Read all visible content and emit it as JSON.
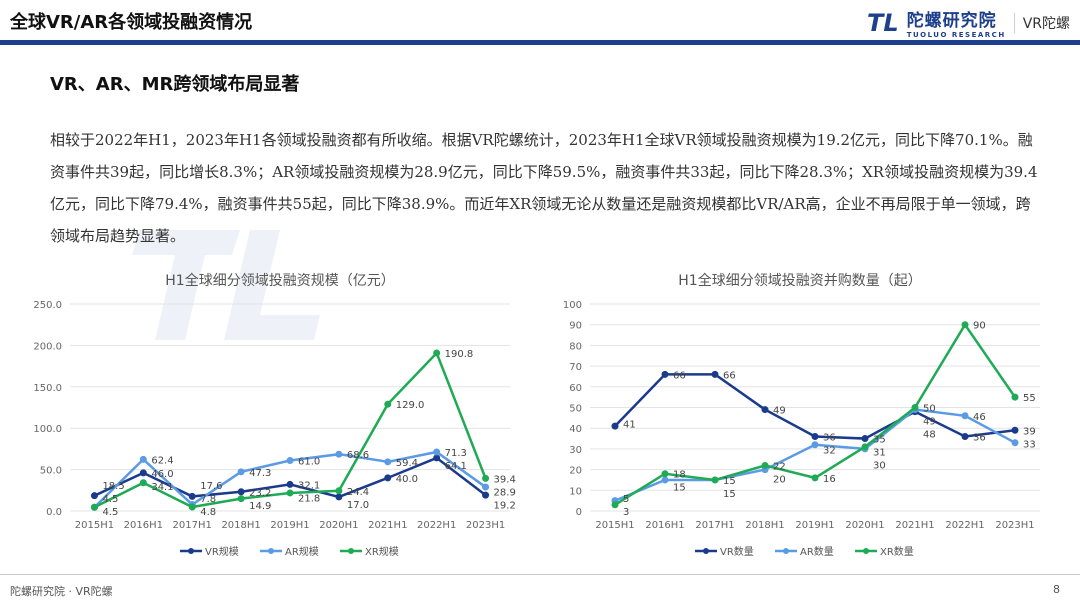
{
  "header": {
    "title": "全球VR/AR各领域投融资情况",
    "logo_cn": "陀螺研究院",
    "logo_en": "TUOLUO RESEARCH",
    "logo_mark": "TL",
    "logo_vr": "VR陀螺"
  },
  "subtitle": "VR、AR、MR跨领域布局显著",
  "paragraph": "相较于2022年H1，2023年H1各领域投融资都有所收缩。根据VR陀螺统计，2023年H1全球VR领域投融资规模为19.2亿元，同比下降70.1%。融资事件共39起，同比增长8.3%；AR领域投融资规模为28.9亿元，同比下降59.5%，融资事件共33起，同比下降28.3%；XR领域投融资规模为39.4亿元，同比下降79.4%，融资事件共55起，同比下降38.9%。而近年XR领域无论从数量还是融资规模都比VR/AR高，企业不再局限于单一领域，跨领域布局趋势显著。",
  "footer": {
    "source": "陀螺研究院 · VR陀螺",
    "page": "8"
  },
  "colors": {
    "VR": "#1a3a8c",
    "AR": "#5b9be6",
    "XR": "#1faa55"
  },
  "chart_data": [
    {
      "type": "line",
      "title": "H1全球细分领域投融资规模（亿元）",
      "categories": [
        "2015H1",
        "2016H1",
        "2017H1",
        "2018H1",
        "2019H1",
        "2020H1",
        "2021H1",
        "2022H1",
        "2023H1"
      ],
      "ylim": [
        0,
        250
      ],
      "yticks": [
        "0.0",
        "50.0",
        "100.0",
        "150.0",
        "200.0",
        "250.0"
      ],
      "grid": true,
      "legend": "bottom",
      "decimals": 1,
      "series": [
        {
          "name": "VR规模",
          "values": [
            18.5,
            46.0,
            17.6,
            23.2,
            32.1,
            17.0,
            40.0,
            64.1,
            19.2
          ]
        },
        {
          "name": "AR规模",
          "values": [
            4.5,
            62.4,
            7.8,
            47.3,
            61.0,
            68.6,
            59.4,
            71.3,
            28.9
          ]
        },
        {
          "name": "XR规模",
          "values": [
            4.5,
            34.1,
            4.8,
            14.9,
            21.8,
            24.4,
            129.0,
            190.8,
            39.4
          ]
        }
      ]
    },
    {
      "type": "line",
      "title": "H1全球细分领域投融资并购数量（起）",
      "categories": [
        "2015H1",
        "2016H1",
        "2017H1",
        "2018H1",
        "2019H1",
        "2020H1",
        "2021H1",
        "2022H1",
        "2023H1"
      ],
      "ylim": [
        0,
        100
      ],
      "yticks": [
        "0",
        "10",
        "20",
        "30",
        "40",
        "50",
        "60",
        "70",
        "80",
        "90",
        "100"
      ],
      "grid": true,
      "legend": "bottom",
      "decimals": 0,
      "series": [
        {
          "name": "VR数量",
          "values": [
            41,
            66,
            66,
            49,
            36,
            35,
            48,
            36,
            39
          ]
        },
        {
          "name": "AR数量",
          "values": [
            5,
            15,
            15,
            20,
            32,
            30,
            49,
            46,
            33
          ]
        },
        {
          "name": "XR数量",
          "values": [
            3,
            18,
            15,
            22,
            16,
            31,
            50,
            90,
            55
          ]
        }
      ]
    }
  ]
}
